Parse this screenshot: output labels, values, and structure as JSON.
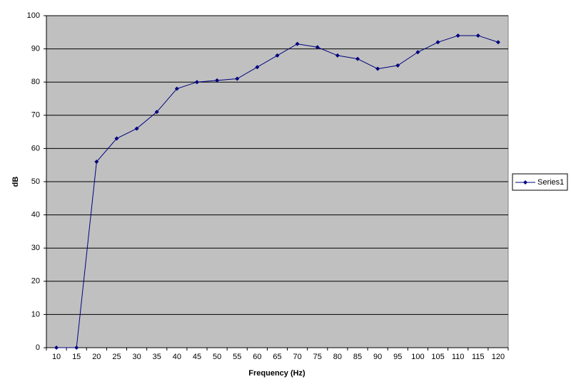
{
  "chart_data": {
    "type": "line",
    "x_label": "Frequency (Hz)",
    "y_label": "dB",
    "categories": [
      10,
      15,
      20,
      25,
      30,
      35,
      40,
      45,
      50,
      55,
      60,
      65,
      70,
      75,
      80,
      85,
      90,
      95,
      100,
      105,
      110,
      115,
      120
    ],
    "series": [
      {
        "name": "Series1",
        "color": "#000080",
        "values": [
          0,
          0,
          56,
          63,
          66,
          71,
          78,
          80,
          80.5,
          81,
          84.5,
          88,
          91.5,
          90.5,
          88,
          87,
          84,
          85,
          89,
          92,
          94,
          94,
          92
        ]
      }
    ],
    "ylim": [
      0,
      100
    ],
    "yticks": [
      0,
      10,
      20,
      30,
      40,
      50,
      60,
      70,
      80,
      90,
      100
    ],
    "grid": true,
    "legend": "right",
    "plot_background": "#c0c0c0"
  }
}
